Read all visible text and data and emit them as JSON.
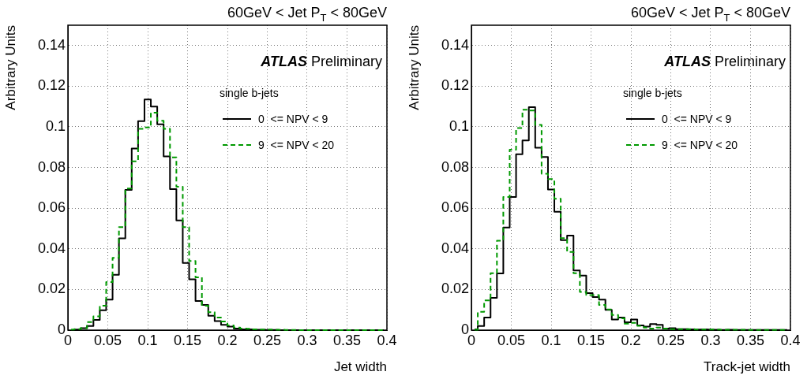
{
  "chart_data": [
    {
      "type": "step",
      "title": "60GeV < Jet P$_{T}$ < 80GeV",
      "xlabel": "Jet width",
      "ylabel": "Arbitrary Units",
      "x": [
        0.004,
        0.012,
        0.02,
        0.028,
        0.036,
        0.044,
        0.052,
        0.06,
        0.068,
        0.076,
        0.084,
        0.092,
        0.1,
        0.108,
        0.116,
        0.124,
        0.132,
        0.14,
        0.148,
        0.156,
        0.164,
        0.172,
        0.18,
        0.188,
        0.196,
        0.204,
        0.212,
        0.22,
        0.228,
        0.236,
        0.244,
        0.252,
        0.26,
        0.268,
        0.276,
        0.284,
        0.292,
        0.3,
        0.308,
        0.316,
        0.324,
        0.332,
        0.34,
        0.348,
        0.356,
        0.364,
        0.372,
        0.38,
        0.388,
        0.396
      ],
      "series": [
        {
          "name": "0  <= NPV < 9",
          "color": "#000000",
          "line_style": "solid",
          "values": [
            0,
            0.0003,
            0.001,
            0.002,
            0.005,
            0.0098,
            0.015,
            0.0272,
            0.0452,
            0.069,
            0.0893,
            0.1028,
            0.1135,
            0.11,
            0.1013,
            0.0855,
            0.0694,
            0.054,
            0.033,
            0.025,
            0.0143,
            0.0124,
            0.0071,
            0.0045,
            0.0026,
            0.0017,
            0.0008,
            0.0004,
            0.0004,
            0.0002,
            0.0002,
            0.0001,
            0.0001,
            0,
            0,
            0,
            0,
            0,
            0,
            0,
            0,
            0,
            0,
            0,
            0,
            0,
            0,
            0,
            0,
            0
          ]
        },
        {
          "name": "9  <= NPV < 20",
          "color": "#009900",
          "line_style": "dashed",
          "values": [
            0.0003,
            0.0005,
            0.001,
            0.004,
            0.0068,
            0.012,
            0.0236,
            0.0356,
            0.0507,
            0.0697,
            0.083,
            0.099,
            0.0997,
            0.107,
            0.103,
            0.099,
            0.085,
            0.0705,
            0.0507,
            0.034,
            0.026,
            0.012,
            0.0088,
            0.0062,
            0.0043,
            0.0023,
            0.0013,
            0.0008,
            0.0007,
            0.0004,
            0.0003,
            0.0003,
            0.0002,
            0.0002,
            0.0001,
            0.0001,
            0,
            0,
            0,
            0,
            0,
            0,
            0,
            0,
            0,
            0,
            0,
            0,
            0,
            0
          ]
        }
      ],
      "xlim": [
        0,
        0.4
      ],
      "xticks": [
        0,
        0.05,
        0.1,
        0.15,
        0.2,
        0.25,
        0.3,
        0.35,
        0.4
      ],
      "ylim": [
        0,
        0.15
      ],
      "yticks": [
        0,
        0.02,
        0.04,
        0.06,
        0.08,
        0.1,
        0.12,
        0.14
      ],
      "grid": true,
      "legend": "top right",
      "annotations": [
        "ATLAS Preliminary",
        "single b-jets"
      ]
    },
    {
      "type": "step",
      "title": "60GeV < Jet P$_{T}$ < 80GeV",
      "xlabel": "Track-jet width",
      "ylabel": "Arbitrary Units",
      "x": [
        0.004,
        0.012,
        0.02,
        0.028,
        0.036,
        0.044,
        0.052,
        0.06,
        0.068,
        0.076,
        0.084,
        0.092,
        0.1,
        0.108,
        0.116,
        0.124,
        0.132,
        0.14,
        0.148,
        0.156,
        0.164,
        0.172,
        0.18,
        0.188,
        0.196,
        0.204,
        0.212,
        0.22,
        0.228,
        0.236,
        0.244,
        0.252,
        0.26,
        0.268,
        0.276,
        0.284,
        0.292,
        0.3,
        0.308,
        0.316,
        0.324,
        0.332,
        0.34,
        0.348,
        0.356,
        0.364,
        0.372,
        0.38,
        0.388,
        0.396
      ],
      "series": [
        {
          "name": "0  <= NPV < 9",
          "color": "#000000",
          "line_style": "solid",
          "values": [
            0.0004,
            0.002,
            0.0062,
            0.0159,
            0.0279,
            0.0505,
            0.0655,
            0.0865,
            0.0933,
            0.1097,
            0.0897,
            0.0852,
            0.0692,
            0.0582,
            0.0443,
            0.0465,
            0.0294,
            0.0268,
            0.0182,
            0.0163,
            0.015,
            0.01,
            0.0052,
            0.0062,
            0.0039,
            0.0052,
            0.0023,
            0.0017,
            0.003,
            0.0026,
            0.0008,
            0.001,
            0.0005,
            0.0005,
            0.0004,
            0.0003,
            0.0004,
            0.0003,
            0.0002,
            0.0001,
            0.0002,
            0.0001,
            0.0001,
            0.0001,
            0.0001,
            0.0001,
            0.0001,
            0.0001,
            0.0001,
            0.0001
          ]
        },
        {
          "name": "9  <= NPV < 20",
          "color": "#009900",
          "line_style": "dashed",
          "values": [
            0.0002,
            0.009,
            0.0146,
            0.028,
            0.044,
            0.0655,
            0.0888,
            0.0994,
            0.1084,
            0.108,
            0.101,
            0.0769,
            0.0743,
            0.0646,
            0.0453,
            0.0385,
            0.028,
            0.0188,
            0.0172,
            0.0172,
            0.0124,
            0.0102,
            0.0075,
            0.0058,
            0.0032,
            0.0036,
            0.0021,
            0.0013,
            0.0008,
            0.0013,
            0.0008,
            0.0005,
            0.0005,
            0.0005,
            0.0005,
            0.0003,
            0.0003,
            0.0003,
            0.0003,
            0.0002,
            0.0002,
            0.0002,
            0.0002,
            0.0001,
            0.0001,
            0.0001,
            0.0001,
            0.0001,
            0.0001,
            0.0001
          ]
        }
      ],
      "xlim": [
        0,
        0.4
      ],
      "xticks": [
        0,
        0.05,
        0.1,
        0.15,
        0.2,
        0.25,
        0.3,
        0.35,
        0.4
      ],
      "ylim": [
        0,
        0.15
      ],
      "yticks": [
        0,
        0.02,
        0.04,
        0.06,
        0.08,
        0.1,
        0.12,
        0.14
      ],
      "grid": true,
      "legend": "top right",
      "annotations": [
        "ATLAS Preliminary",
        "single b-jets"
      ]
    }
  ]
}
